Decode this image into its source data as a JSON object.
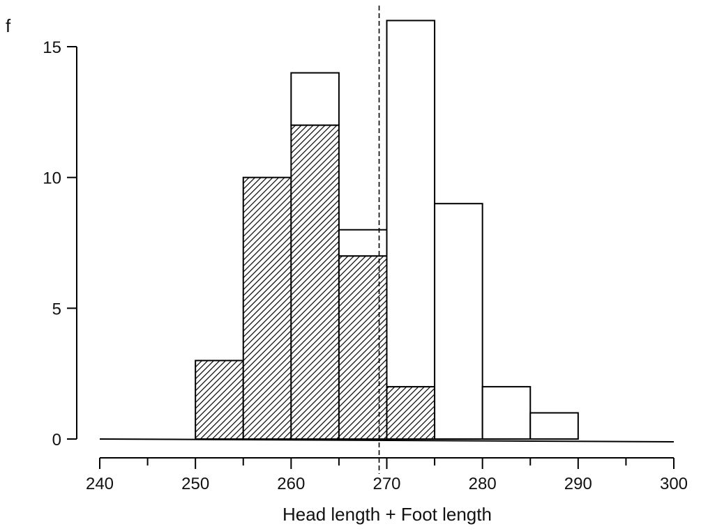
{
  "chart_data": {
    "type": "bar",
    "subtype": "stacked-histogram",
    "ylabel": "f",
    "xlabel": "Head length + Foot length",
    "xlim": [
      240,
      300
    ],
    "ylim": [
      0,
      16
    ],
    "x_ticks": [
      240,
      250,
      260,
      270,
      280,
      290,
      300
    ],
    "x_minor_ticks": [
      245,
      255,
      265,
      275,
      285,
      295
    ],
    "y_ticks": [
      0,
      5,
      10,
      15
    ],
    "bin_width": 5,
    "bins": [
      250,
      255,
      260,
      265,
      270,
      275,
      280,
      285
    ],
    "series": [
      {
        "pattern": "hatched",
        "values": [
          3,
          10,
          12,
          7,
          2,
          0,
          0,
          0
        ]
      },
      {
        "pattern": "open",
        "values": [
          0,
          0,
          2,
          1,
          14,
          9,
          2,
          1
        ]
      }
    ],
    "reference_line": {
      "x": 269.2,
      "style": "dashed"
    },
    "grid": false,
    "legend": "none",
    "colors": {
      "stroke": "#000000",
      "hatch": "#000000",
      "background": "#ffffff"
    }
  }
}
